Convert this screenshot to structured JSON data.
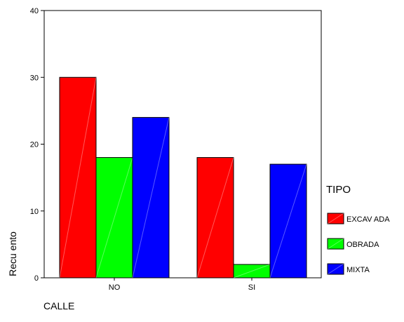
{
  "chart_data": {
    "type": "bar",
    "categories": [
      "NO",
      "SI"
    ],
    "series": [
      {
        "name": "EXCAV ADA",
        "values": [
          30,
          18
        ],
        "color": "#ff0000"
      },
      {
        "name": "OBRADA",
        "values": [
          18,
          2
        ],
        "color": "#00ff00"
      },
      {
        "name": "MIXTA",
        "values": [
          24,
          17
        ],
        "color": "#0000ff"
      }
    ],
    "xlabel": "CALLE",
    "ylabel": "Recu ento",
    "yticks": [
      0,
      10,
      20,
      30,
      40
    ],
    "ylim": [
      0,
      40
    ],
    "legend_title": "TIPO",
    "legend_position": "right",
    "grid": false
  }
}
